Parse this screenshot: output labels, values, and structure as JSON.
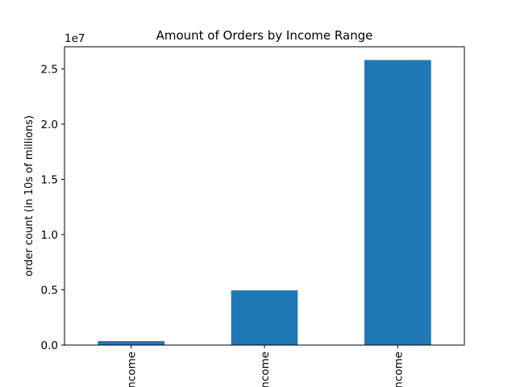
{
  "chart_data": {
    "type": "bar",
    "title": "Amount of Orders by Income Range",
    "xlabel": "",
    "ylabel": "order count (in 10s of millions)",
    "scale_label": "1e7",
    "categories": [
      "Low Income",
      "Middle Income",
      "High Income"
    ],
    "visible_category_text": [
      "ncome",
      "ncome",
      "ncome"
    ],
    "values": [
      360000,
      4950000,
      25800000
    ],
    "ylim": [
      0,
      27000000
    ],
    "y_ticks": [
      0,
      5000000,
      10000000,
      15000000,
      20000000,
      25000000
    ],
    "y_tick_labels": [
      "0.0",
      "0.5",
      "1.0",
      "1.5",
      "2.0",
      "2.5"
    ],
    "bar_color": "#1f77b4",
    "grid": false,
    "legend": "none"
  }
}
